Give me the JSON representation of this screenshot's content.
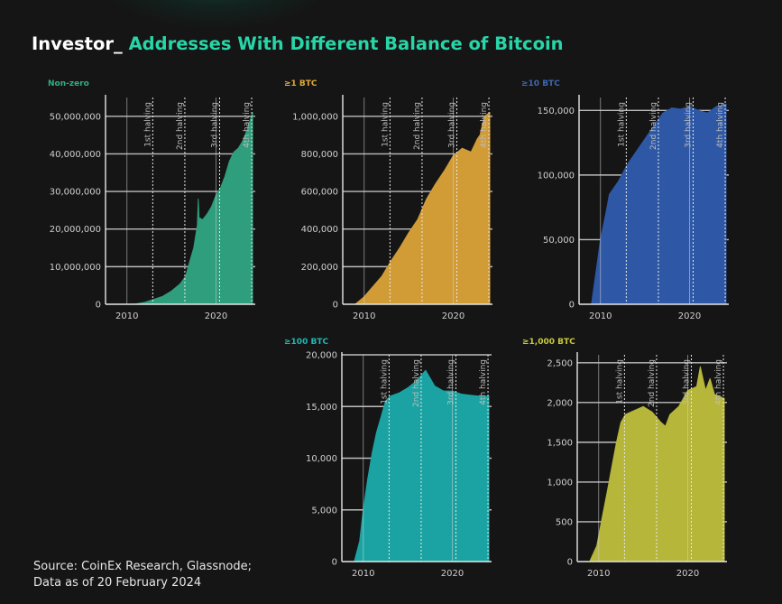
{
  "title": {
    "prefix": "Investor_",
    "main": "Addresses With Different Balance of Bitcoin"
  },
  "source": {
    "line1": "Source: CoinEx Research, Glassnode;",
    "line2": "Data as of 20 February 2024"
  },
  "colors": {
    "background": "#151515",
    "accent": "#27d6a8"
  },
  "chart_data": [
    {
      "type": "area",
      "panel_label": "Non-zero",
      "label_color": "#2fae86",
      "color": "#2f9e7c",
      "ylim": [
        0,
        55000000
      ],
      "yticks": [
        0,
        10000000,
        20000000,
        30000000,
        40000000,
        50000000
      ],
      "ytick_labels": [
        "0",
        "10,000,000",
        "20,000,000",
        "30,000,000",
        "40,000,000",
        "50,000,000"
      ],
      "xlim": [
        2007.6,
        2024.4
      ],
      "xticks": [
        2010,
        2020
      ],
      "xtick_labels": [
        "2010",
        "2020"
      ],
      "grid": true,
      "halvings": [
        {
          "x": 2012.9,
          "label": "1st halving"
        },
        {
          "x": 2016.5,
          "label": "2nd halving"
        },
        {
          "x": 2020.4,
          "label": "3rd halving"
        },
        {
          "x": 2024.0,
          "label": "4th halving"
        }
      ],
      "x": [
        2009.0,
        2010.0,
        2011.0,
        2012.0,
        2013.0,
        2014.0,
        2015.0,
        2016.0,
        2016.6,
        2017.0,
        2017.5,
        2017.9,
        2018.0,
        2018.1,
        2018.5,
        2019.0,
        2019.5,
        2020.0,
        2020.5,
        2021.0,
        2021.5,
        2022.0,
        2022.5,
        2023.0,
        2023.5,
        2024.1
      ],
      "y": [
        0,
        5000,
        100000,
        500000,
        1300000,
        2100000,
        3500000,
        5500000,
        7500000,
        11000000,
        15000000,
        21000000,
        28000000,
        23000000,
        22500000,
        24000000,
        26000000,
        29000000,
        31000000,
        34000000,
        38000000,
        40500000,
        41500000,
        43500000,
        46500000,
        51000000
      ]
    },
    {
      "type": "area",
      "panel_label": "≥1 BTC",
      "label_color": "#e0a83a",
      "color": "#d19c36",
      "ylim": [
        0,
        1100000
      ],
      "yticks": [
        0,
        200000,
        400000,
        600000,
        800000,
        1000000
      ],
      "ytick_labels": [
        "0",
        "200,000",
        "400,000",
        "600,000",
        "800,000",
        "1,000,000"
      ],
      "xlim": [
        2007.6,
        2024.4
      ],
      "xticks": [
        2010,
        2020
      ],
      "xtick_labels": [
        "2010",
        "2020"
      ],
      "grid": true,
      "halvings": [
        {
          "x": 2012.9,
          "label": "1st halving"
        },
        {
          "x": 2016.5,
          "label": "2nd halving"
        },
        {
          "x": 2020.4,
          "label": "3rd halving"
        },
        {
          "x": 2024.0,
          "label": "4th halving"
        }
      ],
      "x": [
        2009.0,
        2010.0,
        2011.0,
        2012.0,
        2013.0,
        2014.0,
        2015.0,
        2016.0,
        2017.0,
        2018.0,
        2019.0,
        2020.0,
        2021.0,
        2022.0,
        2022.7,
        2023.0,
        2023.5,
        2024.1
      ],
      "y": [
        0,
        40000,
        95000,
        150000,
        230000,
        300000,
        380000,
        450000,
        560000,
        640000,
        710000,
        790000,
        830000,
        810000,
        880000,
        900000,
        1000000,
        1020000
      ]
    },
    {
      "type": "area",
      "panel_label": "≥10 BTC",
      "label_color": "#3e67b2",
      "color": "#2e58a6",
      "ylim": [
        0,
        160000
      ],
      "yticks": [
        0,
        50000,
        100000,
        150000
      ],
      "ytick_labels": [
        "0",
        "50,000",
        "100,000",
        "150,000"
      ],
      "xlim": [
        2007.6,
        2024.4
      ],
      "xticks": [
        2010,
        2020
      ],
      "xtick_labels": [
        "2010",
        "2020"
      ],
      "grid": true,
      "halvings": [
        {
          "x": 2012.9,
          "label": "1st halving"
        },
        {
          "x": 2016.5,
          "label": "2nd halving"
        },
        {
          "x": 2020.4,
          "label": "3rd halving"
        },
        {
          "x": 2024.0,
          "label": "4th halving"
        }
      ],
      "x": [
        2009.0,
        2009.6,
        2010.0,
        2010.6,
        2011.0,
        2011.5,
        2012.0,
        2013.0,
        2014.0,
        2015.0,
        2016.0,
        2017.0,
        2018.0,
        2019.0,
        2020.0,
        2021.0,
        2022.0,
        2023.0,
        2024.1
      ],
      "y": [
        0,
        30000,
        50000,
        70000,
        85000,
        90000,
        95000,
        108000,
        118000,
        128000,
        138000,
        148000,
        152000,
        151000,
        153000,
        150000,
        148000,
        153000,
        155000
      ]
    },
    {
      "type": "area",
      "panel_label": "≥100 BTC",
      "label_color": "#1fb7b2",
      "color": "#1aa3a2",
      "ylim": [
        0,
        20000
      ],
      "yticks": [
        0,
        5000,
        10000,
        15000,
        20000
      ],
      "ytick_labels": [
        "0",
        "5,000",
        "10,000",
        "15,000",
        "20,000"
      ],
      "xlim": [
        2007.6,
        2024.4
      ],
      "xticks": [
        2010,
        2020
      ],
      "xtick_labels": [
        "2010",
        "2020"
      ],
      "grid": true,
      "halvings": [
        {
          "x": 2012.9,
          "label": "1st halving"
        },
        {
          "x": 2016.5,
          "label": "2nd halving"
        },
        {
          "x": 2020.4,
          "label": "3rd halving"
        },
        {
          "x": 2024.0,
          "label": "4th halving"
        }
      ],
      "x": [
        2009.0,
        2009.6,
        2010.0,
        2010.5,
        2011.0,
        2011.5,
        2012.0,
        2012.5,
        2013.0,
        2014.0,
        2015.0,
        2016.0,
        2017.0,
        2018.0,
        2019.0,
        2020.0,
        2021.0,
        2022.0,
        2023.0,
        2024.1
      ],
      "y": [
        0,
        2000,
        5000,
        8000,
        10500,
        12500,
        14000,
        15500,
        16000,
        16300,
        16800,
        17500,
        18500,
        17000,
        16500,
        16500,
        16200,
        16100,
        16000,
        16000
      ]
    },
    {
      "type": "area",
      "panel_label": "≥1,000 BTC",
      "label_color": "#c9c83c",
      "color": "#b6b63a",
      "ylim": [
        0,
        2600
      ],
      "yticks": [
        0,
        500,
        1000,
        1500,
        2000,
        2500
      ],
      "ytick_labels": [
        "0",
        "500",
        "1,000",
        "1,500",
        "2,000",
        "2,500"
      ],
      "xlim": [
        2007.6,
        2024.4
      ],
      "xticks": [
        2010,
        2020
      ],
      "xtick_labels": [
        "2010",
        "2020"
      ],
      "grid": true,
      "halvings": [
        {
          "x": 2012.9,
          "label": "1st halving"
        },
        {
          "x": 2016.5,
          "label": "2nd halving"
        },
        {
          "x": 2020.4,
          "label": "3rd halving"
        },
        {
          "x": 2024.0,
          "label": "4th halving"
        }
      ],
      "x": [
        2009.0,
        2009.8,
        2010.3,
        2011.0,
        2011.5,
        2012.0,
        2012.5,
        2013.0,
        2014.0,
        2015.0,
        2016.0,
        2017.0,
        2017.5,
        2018.0,
        2019.0,
        2020.0,
        2021.0,
        2021.4,
        2022.0,
        2022.5,
        2023.0,
        2024.1
      ],
      "y": [
        0,
        200,
        500,
        900,
        1200,
        1500,
        1750,
        1850,
        1900,
        1950,
        1880,
        1750,
        1700,
        1850,
        1950,
        2150,
        2200,
        2450,
        2150,
        2300,
        2100,
        2050
      ]
    }
  ]
}
